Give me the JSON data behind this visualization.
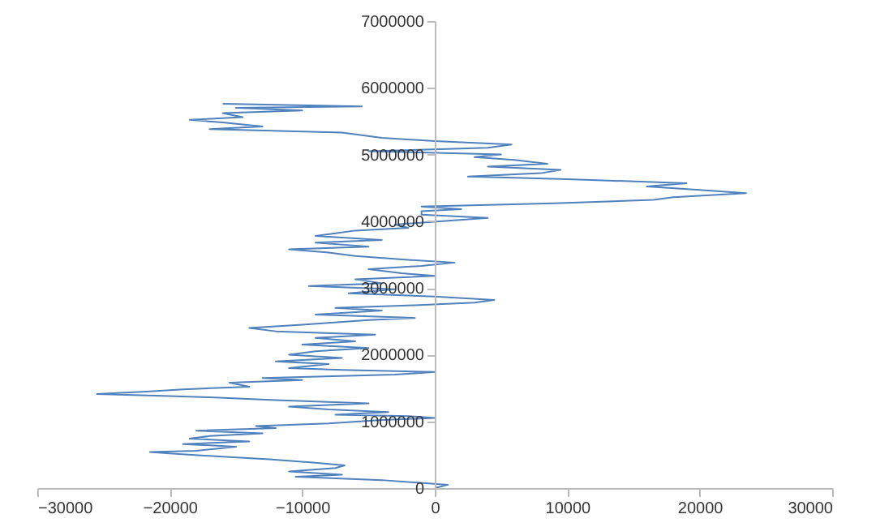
{
  "chart_data": {
    "type": "line",
    "x": [
      0,
      1000,
      -4000,
      -10500,
      -7000,
      -11000,
      -7500,
      -6800,
      -9000,
      -12500,
      -16000,
      -20000,
      -21500,
      -18000,
      -15000,
      -19000,
      -14000,
      -18500,
      -17000,
      -13000,
      -18000,
      -12000,
      -13500,
      -8000,
      -4000,
      0,
      -2000,
      -7500,
      -3500,
      -8000,
      -11000,
      -5000,
      -12000,
      -17000,
      -20000,
      -25500,
      -21500,
      -19000,
      -14000,
      -15500,
      -10000,
      -13000,
      -3000,
      0,
      -7000,
      -11000,
      -8000,
      -12000,
      -7000,
      -11000,
      -9000,
      -5000,
      -10000,
      -6000,
      -9000,
      -4500,
      -12000,
      -14000,
      -10000,
      -5000,
      -1500,
      -9000,
      -4000,
      -7500,
      -1500,
      3000,
      4500,
      0,
      -6500,
      -3000,
      -9500,
      -4000,
      -6000,
      0,
      -2500,
      -5000,
      -1000,
      1500,
      -2000,
      -6000,
      -8000,
      -11000,
      -5000,
      -9000,
      -4000,
      -9000,
      -7500,
      -6000,
      -2000,
      -3000,
      4000,
      -1000,
      -1000,
      2000,
      -1000,
      9000,
      16500,
      18000,
      23500,
      20000,
      16000,
      19000,
      10000,
      2500,
      8000,
      9500,
      4000,
      8500,
      6000,
      3000,
      5000,
      -5000,
      4000,
      5800,
      0,
      -4000,
      -7000,
      -17000,
      -13000,
      -16000,
      -18500,
      -14500,
      -16000,
      -10000,
      -15000,
      -5500,
      -16000
    ],
    "series": [
      {
        "color": "#4f81bd",
        "values": [
          0,
          50000,
          120000,
          170000,
          200000,
          250000,
          300000,
          340000,
          380000,
          430000,
          470000,
          520000,
          540000,
          560000,
          620000,
          660000,
          700000,
          740000,
          780000,
          820000,
          860000,
          900000,
          930000,
          970000,
          1020000,
          1050000,
          1080000,
          1100000,
          1140000,
          1180000,
          1220000,
          1270000,
          1320000,
          1360000,
          1380000,
          1410000,
          1450000,
          1480000,
          1520000,
          1580000,
          1620000,
          1650000,
          1700000,
          1740000,
          1770000,
          1800000,
          1860000,
          1900000,
          1950000,
          2000000,
          2050000,
          2100000,
          2150000,
          2200000,
          2250000,
          2300000,
          2350000,
          2400000,
          2450000,
          2520000,
          2550000,
          2600000,
          2660000,
          2700000,
          2740000,
          2780000,
          2820000,
          2870000,
          2920000,
          2980000,
          3030000,
          3070000,
          3130000,
          3180000,
          3220000,
          3280000,
          3330000,
          3380000,
          3420000,
          3480000,
          3530000,
          3580000,
          3620000,
          3680000,
          3720000,
          3780000,
          3820000,
          3860000,
          3900000,
          3950000,
          4050000,
          4100000,
          4150000,
          4180000,
          4220000,
          4270000,
          4320000,
          4360000,
          4420000,
          4470000,
          4520000,
          4570000,
          4630000,
          4670000,
          4720000,
          4770000,
          4820000,
          4860000,
          4920000,
          4960000,
          5000000,
          5050000,
          5100000,
          5150000,
          5200000,
          5250000,
          5330000,
          5380000,
          5420000,
          5480000,
          5520000,
          5560000,
          5620000,
          5660000,
          5700000,
          5720000,
          5760000
        ]
      }
    ],
    "xlim": [
      -30000,
      30000
    ],
    "xticks": [
      -30000,
      -20000,
      -10000,
      0,
      10000,
      20000,
      30000
    ],
    "ylim": [
      0,
      7000000
    ],
    "yticks": [
      0,
      1000000,
      2000000,
      3000000,
      4000000,
      5000000,
      6000000,
      7000000
    ],
    "grid": false
  }
}
